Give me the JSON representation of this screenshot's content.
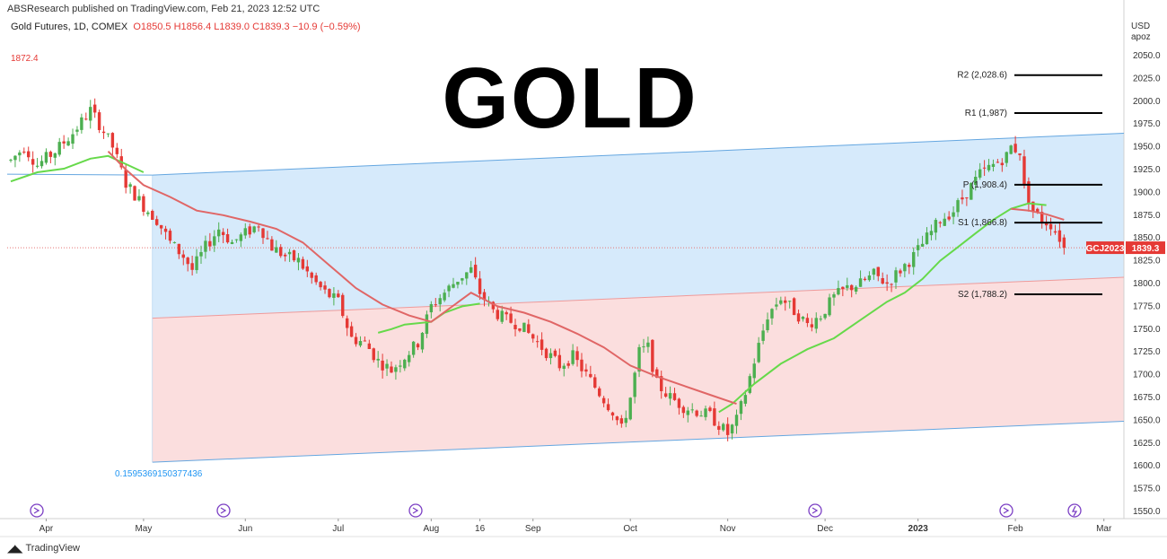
{
  "header": {
    "publisher": "ABSResearch published on TradingView.com, Feb 21, 2023 12:52 UTC",
    "symbol": "Gold Futures, 1D, COMEX",
    "ohlc": "O1850.5  H1856.4  L1839.0  C1839.3  −10.9 (−0.59%)",
    "unit_line1": "USD",
    "unit_line2": "apoz"
  },
  "title": "GOLD",
  "annotations": {
    "high_label": "1872.4",
    "fib_label": "0.1595369150377436",
    "logo_text": "TradingView"
  },
  "price_tags": [
    {
      "label": "GCJ2023",
      "value": "1839.3",
      "price": 1839.3,
      "color": "#e53935"
    }
  ],
  "colors": {
    "up": "#4caf50",
    "down": "#e53935",
    "channel_line": "#64a6e0",
    "channel_fill_upper": "#d6eafb",
    "channel_fill_lower": "#fbdede",
    "mid_line": "#ef9a9a",
    "ma_green": "#66d94a",
    "ma_red": "#e06666",
    "pivot": "#000000"
  },
  "chart_data": {
    "type": "candlestick",
    "ylim": [
      1545,
      2060
    ],
    "yticks": [
      1550,
      1575,
      1600,
      1625,
      1650,
      1675,
      1700,
      1725,
      1750,
      1775,
      1800,
      1825,
      1850,
      1875,
      1900,
      1925,
      1950,
      1975,
      2000,
      2025,
      2050
    ],
    "x_index_range": [
      0,
      238
    ],
    "xticks": [
      {
        "label": "Apr",
        "idx": 8,
        "bold": false
      },
      {
        "label": "May",
        "idx": 30,
        "bold": false
      },
      {
        "label": "Jun",
        "idx": 53,
        "bold": false
      },
      {
        "label": "Jul",
        "idx": 74,
        "bold": false
      },
      {
        "label": "Aug",
        "idx": 95,
        "bold": false
      },
      {
        "label": "16",
        "idx": 106,
        "bold": false
      },
      {
        "label": "Sep",
        "idx": 118,
        "bold": false
      },
      {
        "label": "Oct",
        "idx": 140,
        "bold": false
      },
      {
        "label": "Nov",
        "idx": 162,
        "bold": false
      },
      {
        "label": "Dec",
        "idx": 184,
        "bold": false
      },
      {
        "label": "2023",
        "idx": 205,
        "bold": true
      },
      {
        "label": "Feb",
        "idx": 227,
        "bold": false
      },
      {
        "label": "Mar",
        "idx": 247,
        "bold": false
      }
    ],
    "pivots": [
      {
        "label": "R2 (2,028.6)",
        "value": 2028.6
      },
      {
        "label": "R1 (1,987)",
        "value": 1987
      },
      {
        "label": "P (1,908.4)",
        "value": 1908.4
      },
      {
        "label": "S1 (1,866.8)",
        "value": 1866.8
      },
      {
        "label": "S2 (1,788.2)",
        "value": 1788.2
      }
    ],
    "channel": {
      "upper": [
        {
          "idx": 32,
          "price": 1919
        },
        {
          "idx": 252,
          "price": 1965
        }
      ],
      "middle": [
        {
          "idx": 32,
          "price": 1762
        },
        {
          "idx": 252,
          "price": 1807
        }
      ],
      "lower": [
        {
          "idx": 32,
          "price": 1604
        },
        {
          "idx": 252,
          "price": 1649
        }
      ],
      "upper_left": [
        {
          "idx": 0,
          "price": 1920
        }
      ]
    },
    "waypoints": [
      [
        0,
        1935
      ],
      [
        3,
        1950
      ],
      [
        6,
        1930
      ],
      [
        10,
        1945
      ],
      [
        14,
        1965
      ],
      [
        18,
        1990
      ],
      [
        20,
        1975
      ],
      [
        23,
        1950
      ],
      [
        26,
        1910
      ],
      [
        30,
        1885
      ],
      [
        33,
        1870
      ],
      [
        36,
        1845
      ],
      [
        39,
        1830
      ],
      [
        41,
        1815
      ],
      [
        44,
        1840
      ],
      [
        47,
        1860
      ],
      [
        50,
        1845
      ],
      [
        53,
        1855
      ],
      [
        56,
        1865
      ],
      [
        59,
        1840
      ],
      [
        62,
        1830
      ],
      [
        65,
        1825
      ],
      [
        68,
        1805
      ],
      [
        71,
        1790
      ],
      [
        74,
        1780
      ],
      [
        77,
        1740
      ],
      [
        80,
        1735
      ],
      [
        83,
        1715
      ],
      [
        86,
        1705
      ],
      [
        89,
        1720
      ],
      [
        92,
        1735
      ],
      [
        95,
        1775
      ],
      [
        98,
        1790
      ],
      [
        101,
        1805
      ],
      [
        104,
        1815
      ],
      [
        106,
        1790
      ],
      [
        109,
        1770
      ],
      [
        112,
        1760
      ],
      [
        115,
        1755
      ],
      [
        118,
        1740
      ],
      [
        121,
        1725
      ],
      [
        124,
        1710
      ],
      [
        127,
        1720
      ],
      [
        130,
        1700
      ],
      [
        133,
        1680
      ],
      [
        136,
        1660
      ],
      [
        138,
        1640
      ],
      [
        140,
        1675
      ],
      [
        142,
        1725
      ],
      [
        144,
        1730
      ],
      [
        146,
        1690
      ],
      [
        149,
        1675
      ],
      [
        152,
        1665
      ],
      [
        155,
        1660
      ],
      [
        158,
        1655
      ],
      [
        160,
        1645
      ],
      [
        162,
        1635
      ],
      [
        164,
        1650
      ],
      [
        166,
        1680
      ],
      [
        168,
        1715
      ],
      [
        171,
        1765
      ],
      [
        174,
        1785
      ],
      [
        177,
        1770
      ],
      [
        180,
        1755
      ],
      [
        183,
        1765
      ],
      [
        186,
        1785
      ],
      [
        189,
        1795
      ],
      [
        192,
        1800
      ],
      [
        195,
        1810
      ],
      [
        198,
        1800
      ],
      [
        201,
        1815
      ],
      [
        204,
        1830
      ],
      [
        207,
        1850
      ],
      [
        210,
        1870
      ],
      [
        213,
        1880
      ],
      [
        216,
        1900
      ],
      [
        219,
        1920
      ],
      [
        222,
        1930
      ],
      [
        225,
        1940
      ],
      [
        226,
        1950
      ],
      [
        228,
        1945
      ],
      [
        229,
        1905
      ],
      [
        231,
        1880
      ],
      [
        233,
        1870
      ],
      [
        235,
        1865
      ],
      [
        237,
        1850
      ],
      [
        238,
        1839.3
      ]
    ],
    "ma_green_points": [
      [
        0,
        1912
      ],
      [
        6,
        1922
      ],
      [
        12,
        1926
      ],
      [
        18,
        1937
      ],
      [
        22,
        1940
      ],
      [
        26,
        1931
      ],
      [
        30,
        1922
      ],
      [
        83,
        1746
      ],
      [
        86,
        1750
      ],
      [
        89,
        1755
      ],
      [
        95,
        1758
      ],
      [
        98,
        1768
      ],
      [
        102,
        1775
      ],
      [
        106,
        1778
      ],
      [
        160,
        1659
      ],
      [
        163,
        1668
      ],
      [
        168,
        1690
      ],
      [
        174,
        1712
      ],
      [
        180,
        1728
      ],
      [
        186,
        1740
      ],
      [
        192,
        1760
      ],
      [
        198,
        1780
      ],
      [
        202,
        1790
      ],
      [
        206,
        1805
      ],
      [
        210,
        1825
      ],
      [
        214,
        1840
      ],
      [
        218,
        1855
      ],
      [
        222,
        1870
      ],
      [
        226,
        1882
      ],
      [
        230,
        1888
      ],
      [
        234,
        1886
      ]
    ],
    "ma_red_points": [
      [
        22,
        1945
      ],
      [
        26,
        1925
      ],
      [
        30,
        1908
      ],
      [
        36,
        1895
      ],
      [
        42,
        1880
      ],
      [
        48,
        1875
      ],
      [
        54,
        1868
      ],
      [
        60,
        1860
      ],
      [
        66,
        1845
      ],
      [
        72,
        1820
      ],
      [
        78,
        1795
      ],
      [
        84,
        1777
      ],
      [
        90,
        1765
      ],
      [
        95,
        1758
      ],
      [
        104,
        1790
      ],
      [
        110,
        1775
      ],
      [
        116,
        1768
      ],
      [
        122,
        1758
      ],
      [
        128,
        1745
      ],
      [
        134,
        1730
      ],
      [
        140,
        1710
      ],
      [
        146,
        1698
      ],
      [
        152,
        1688
      ],
      [
        158,
        1678
      ],
      [
        164,
        1668
      ],
      [
        226,
        1882
      ],
      [
        230,
        1880
      ],
      [
        234,
        1876
      ],
      [
        238,
        1870
      ]
    ]
  }
}
